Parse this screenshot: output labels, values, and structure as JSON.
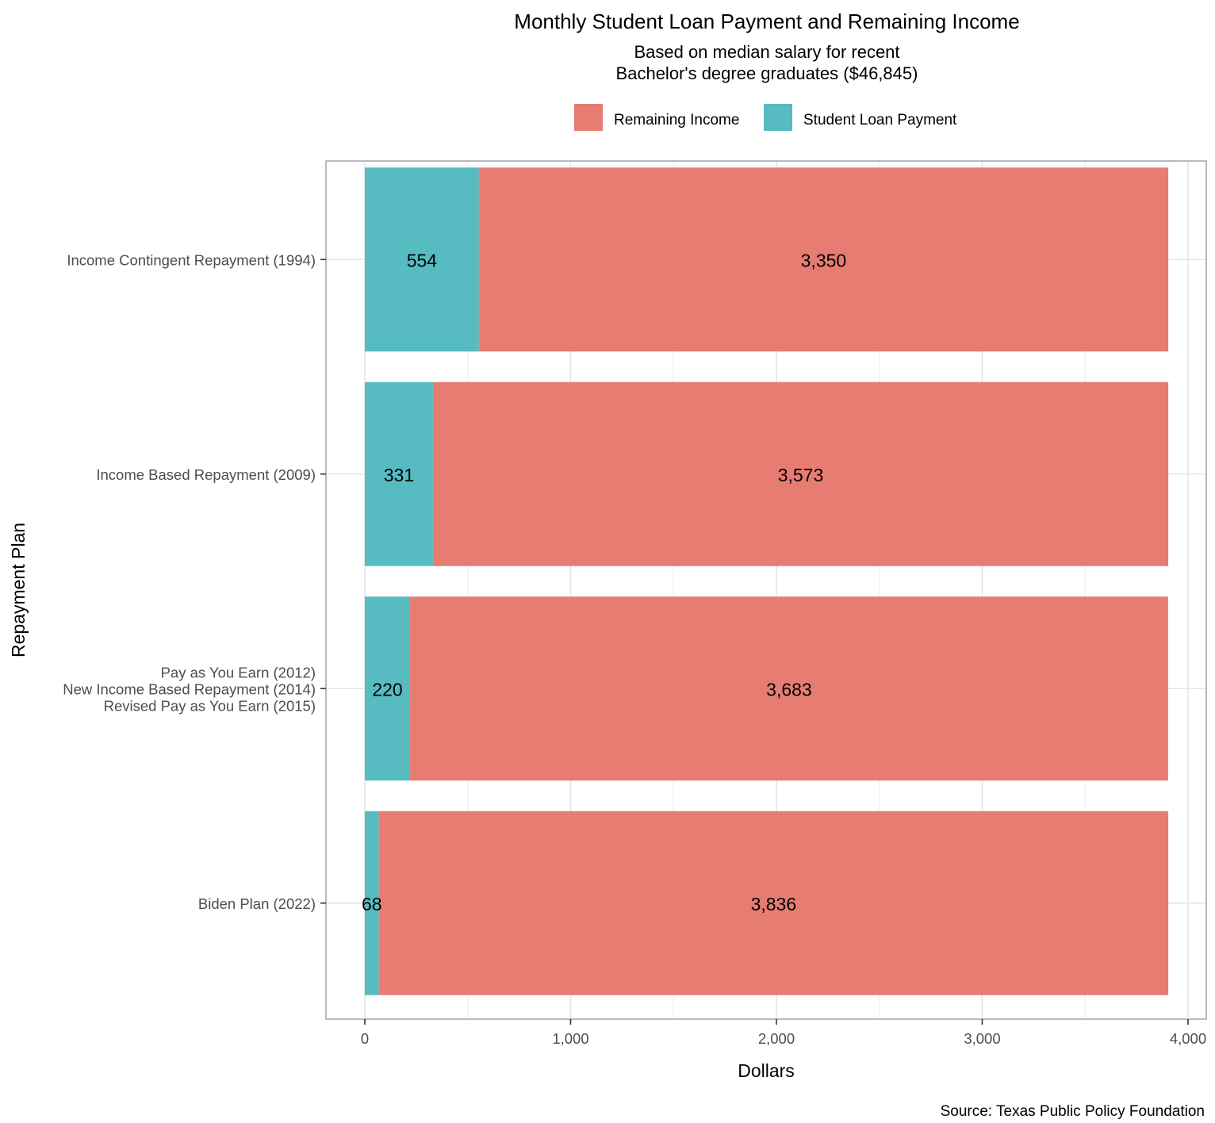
{
  "chart_data": {
    "type": "bar",
    "orientation": "horizontal",
    "stacked": true,
    "title": "Monthly Student Loan Payment and Remaining Income",
    "subtitle_lines": [
      "Based on median salary for recent",
      "Bachelor's degree graduates ($46,845)"
    ],
    "xlabel": "Dollars",
    "ylabel": "Repayment Plan",
    "caption": "Source: Texas Public Policy Foundation",
    "xlim": [
      0,
      4000
    ],
    "x_ticks": [
      0,
      1000,
      2000,
      3000,
      4000
    ],
    "x_tick_labels": [
      "0",
      "1,000",
      "2,000",
      "3,000",
      "4,000"
    ],
    "grid": true,
    "legend_position": "top",
    "categories": [
      [
        "Income Contingent Repayment (1994)"
      ],
      [
        "Income Based Repayment (2009)"
      ],
      [
        "Pay as You Earn (2012)",
        "New Income Based Repayment (2014)",
        "Revised Pay as You Earn (2015)"
      ],
      [
        "Biden Plan (2022)"
      ]
    ],
    "series": [
      {
        "name": "Student Loan Payment",
        "color": "#56BCC2",
        "values": [
          554,
          331,
          220,
          68
        ],
        "labels": [
          "554",
          "331",
          "220",
          "68"
        ]
      },
      {
        "name": "Remaining Income",
        "color": "#E77C72",
        "values": [
          3350,
          3573,
          3683,
          3836
        ],
        "labels": [
          "3,350",
          "3,573",
          "3,683",
          "3,836"
        ]
      }
    ],
    "legend_order": [
      "Remaining Income",
      "Student Loan Payment"
    ]
  }
}
